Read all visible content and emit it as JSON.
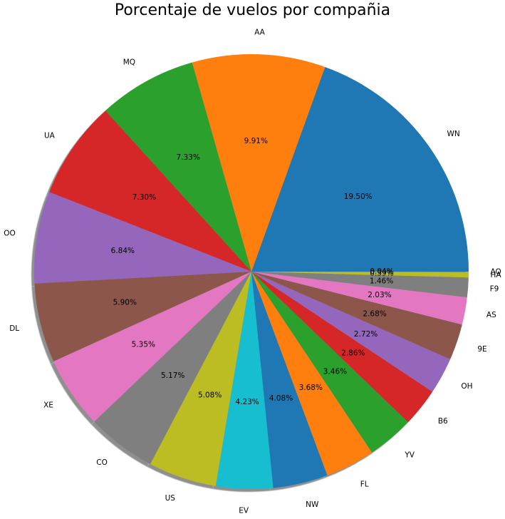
{
  "chart_data": {
    "type": "pie",
    "title": "Porcentaje de vuelos por compañia",
    "start_angle_deg": 0,
    "direction": "counterclockwise",
    "shadow": true,
    "labels_outside": true,
    "pct_labels_inside": true,
    "slices": [
      {
        "label": "WN",
        "pct_text": "19.50%",
        "value": 19.5,
        "color": "#1f77b4"
      },
      {
        "label": "AA",
        "pct_text": "9.91%",
        "value": 9.91,
        "color": "#ff7f0e"
      },
      {
        "label": "MQ",
        "pct_text": "7.33%",
        "value": 7.33,
        "color": "#2ca02c"
      },
      {
        "label": "UA",
        "pct_text": "7.30%",
        "value": 7.3,
        "color": "#d62728"
      },
      {
        "label": "OO",
        "pct_text": "6.84%",
        "value": 6.84,
        "color": "#9467bd"
      },
      {
        "label": "DL",
        "pct_text": "5.90%",
        "value": 5.9,
        "color": "#8c564b"
      },
      {
        "label": "XE",
        "pct_text": "5.35%",
        "value": 5.35,
        "color": "#e377c2"
      },
      {
        "label": "CO",
        "pct_text": "5.17%",
        "value": 5.17,
        "color": "#7f7f7f"
      },
      {
        "label": "US",
        "pct_text": "5.08%",
        "value": 5.08,
        "color": "#bcbd22"
      },
      {
        "label": "EV",
        "pct_text": "4.23%",
        "value": 4.23,
        "color": "#17becf"
      },
      {
        "label": "NW",
        "pct_text": "4.08%",
        "value": 4.08,
        "color": "#1f77b4"
      },
      {
        "label": "FL",
        "pct_text": "3.68%",
        "value": 3.68,
        "color": "#ff7f0e"
      },
      {
        "label": "YV",
        "pct_text": "3.46%",
        "value": 3.46,
        "color": "#2ca02c"
      },
      {
        "label": "B6",
        "pct_text": "2.86%",
        "value": 2.86,
        "color": "#d62728"
      },
      {
        "label": "OH",
        "pct_text": "2.72%",
        "value": 2.72,
        "color": "#9467bd"
      },
      {
        "label": "9E",
        "pct_text": "2.68%",
        "value": 2.68,
        "color": "#8c564b"
      },
      {
        "label": "AS",
        "pct_text": "2.03%",
        "value": 2.03,
        "color": "#e377c2"
      },
      {
        "label": "F9",
        "pct_text": "1.46%",
        "value": 1.46,
        "color": "#7f7f7f"
      },
      {
        "label": "HA",
        "pct_text": "0.39%",
        "value": 0.39,
        "color": "#bcbd22"
      },
      {
        "label": "AQ",
        "pct_text": "0.04%",
        "value": 0.04,
        "color": "#17becf"
      }
    ]
  }
}
